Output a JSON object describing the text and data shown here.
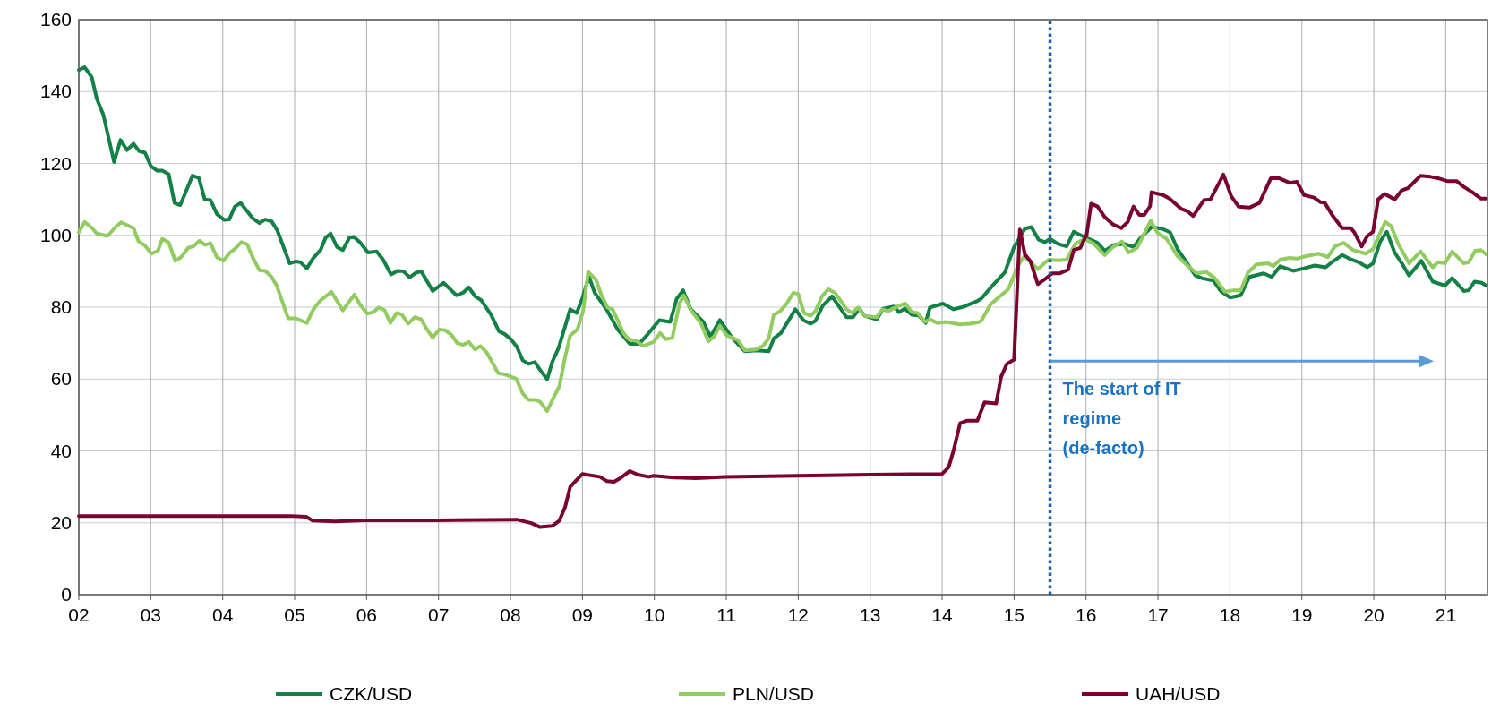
{
  "chart_data": {
    "type": "line",
    "xlim": [
      2002,
      2021.58
    ],
    "ylim": [
      0,
      160
    ],
    "xticks": [
      {
        "value": 2002,
        "label": "02"
      },
      {
        "value": 2003,
        "label": "03"
      },
      {
        "value": 2004,
        "label": "04"
      },
      {
        "value": 2005,
        "label": "05"
      },
      {
        "value": 2006,
        "label": "06"
      },
      {
        "value": 2007,
        "label": "07"
      },
      {
        "value": 2008,
        "label": "08"
      },
      {
        "value": 2009,
        "label": "09"
      },
      {
        "value": 2010,
        "label": "10"
      },
      {
        "value": 2011,
        "label": "11"
      },
      {
        "value": 2012,
        "label": "12"
      },
      {
        "value": 2013,
        "label": "13"
      },
      {
        "value": 2014,
        "label": "14"
      },
      {
        "value": 2015,
        "label": "15"
      },
      {
        "value": 2016,
        "label": "16"
      },
      {
        "value": 2017,
        "label": "17"
      },
      {
        "value": 2018,
        "label": "18"
      },
      {
        "value": 2019,
        "label": "19"
      },
      {
        "value": 2020,
        "label": "20"
      },
      {
        "value": 2021,
        "label": "21"
      }
    ],
    "yticks": [
      0,
      20,
      40,
      60,
      80,
      100,
      120,
      140,
      160
    ],
    "grid": true,
    "legend": "bottom",
    "line_style": "solid",
    "ref_lines": [
      {
        "axis": "x",
        "value": 2015.5,
        "color": "#1f5fa8",
        "line_style": "dotted"
      }
    ],
    "annotations": [
      {
        "text": "The start of IT regime (de-facto)",
        "x": 2015.5,
        "y": 65
      }
    ],
    "series": [
      {
        "name": "CZK/USD",
        "color": "#138045",
        "x": [
          2002,
          2002.08,
          2002.18,
          2002.25,
          2002.34,
          2002.49,
          2002.58,
          2002.67,
          2002.76,
          2002.84,
          2002.92,
          2003,
          2003.09,
          2003.16,
          2003.25,
          2003.33,
          2003.41,
          2003.58,
          2003.67,
          2003.75,
          2003.83,
          2003.92,
          2004.02,
          2004.09,
          2004.17,
          2004.25,
          2004.42,
          2004.51,
          2004.59,
          2004.68,
          2004.76,
          2004.93,
          2005.01,
          2005.08,
          2005.17,
          2005.26,
          2005.36,
          2005.43,
          2005.5,
          2005.59,
          2005.67,
          2005.76,
          2005.82,
          2005.91,
          2006.02,
          2006.14,
          2006.23,
          2006.34,
          2006.43,
          2006.51,
          2006.6,
          2006.69,
          2006.76,
          2006.92,
          2007.07,
          2007.25,
          2007.34,
          2007.42,
          2007.51,
          2007.59,
          2007.73,
          2007.84,
          2007.92,
          2008.01,
          2008.09,
          2008.17,
          2008.25,
          2008.34,
          2008.41,
          2008.51,
          2008.58,
          2008.67,
          2008.83,
          2008.92,
          2009,
          2009.09,
          2009.17,
          2009.34,
          2009.49,
          2009.66,
          2009.79,
          2009.91,
          2010.07,
          2010.22,
          2010.31,
          2010.4,
          2010.5,
          2010.68,
          2010.78,
          2010.91,
          2011.08,
          2011.26,
          2011.43,
          2011.59,
          2011.66,
          2011.76,
          2011.96,
          2012.07,
          2012.17,
          2012.24,
          2012.34,
          2012.47,
          2012.67,
          2012.76,
          2012.85,
          2012.92,
          2013.09,
          2013.18,
          2013.33,
          2013.4,
          2013.48,
          2013.58,
          2013.68,
          2013.77,
          2013.83,
          2014.01,
          2014.16,
          2014.31,
          2014.49,
          2014.55,
          2014.7,
          2014.87,
          2015,
          2015.15,
          2015.24,
          2015.34,
          2015.43,
          2015.5,
          2015.61,
          2015.73,
          2015.83,
          2015.93,
          2016.06,
          2016.16,
          2016.26,
          2016.39,
          2016.54,
          2016.66,
          2016.76,
          2016.91,
          2017.06,
          2017.17,
          2017.27,
          2017.39,
          2017.52,
          2017.62,
          2017.77,
          2017.87,
          2018,
          2018.15,
          2018.27,
          2018.47,
          2018.58,
          2018.7,
          2018.88,
          2019.03,
          2019.18,
          2019.33,
          2019.43,
          2019.56,
          2019.66,
          2019.79,
          2019.91,
          2019.99,
          2020.09,
          2020.18,
          2020.29,
          2020.39,
          2020.49,
          2020.66,
          2020.82,
          2020.99,
          2021.09,
          2021.25,
          2021.32,
          2021.4,
          2021.5,
          2021.56
        ],
        "values": [
          146,
          146.8,
          144,
          138,
          133.6,
          120.4,
          126.5,
          123.7,
          125.5,
          123.4,
          123,
          119.3,
          118,
          118,
          117,
          109,
          108.4,
          116.6,
          115.9,
          110,
          109.8,
          105.9,
          104.3,
          104.4,
          108,
          109,
          104.7,
          103.4,
          104.4,
          103.9,
          101.3,
          92.2,
          92.7,
          92.5,
          90.8,
          93.7,
          95.9,
          99.3,
          100.5,
          96.7,
          95.9,
          99.3,
          99.6,
          98,
          95.2,
          95.5,
          93.2,
          89.1,
          90.1,
          90,
          88.3,
          89.6,
          90,
          84.5,
          86.8,
          83.3,
          84,
          85.5,
          83,
          82,
          77.9,
          73.3,
          72.5,
          71,
          68.9,
          65.2,
          64.2,
          64.7,
          62.6,
          59.9,
          64.7,
          68.7,
          79.4,
          78.4,
          82.5,
          88.6,
          84,
          79.2,
          73.8,
          69.8,
          69.8,
          72.5,
          76.4,
          75.9,
          82.3,
          84.7,
          79.6,
          75.9,
          71.8,
          76.4,
          71.5,
          67.7,
          68,
          67.7,
          71.3,
          72.8,
          79.4,
          76.4,
          75.4,
          76.2,
          80.4,
          83,
          77.2,
          77.2,
          79.6,
          77.6,
          76.6,
          79.6,
          80.2,
          78.6,
          79.6,
          77.9,
          77.6,
          75.6,
          79.9,
          81,
          79.4,
          80.2,
          81.7,
          82.5,
          86,
          89.6,
          96.7,
          101.8,
          102.3,
          98.8,
          98.1,
          99,
          97.6,
          96.9,
          101,
          100,
          98.8,
          97.9,
          95.7,
          97.3,
          97.6,
          96.7,
          99.3,
          102.3,
          101.8,
          100.8,
          96.2,
          92.7,
          88.8,
          88,
          87.4,
          84.5,
          82.7,
          83.3,
          88.4,
          89.4,
          88.4,
          91.4,
          90.1,
          90.8,
          91.6,
          91.1,
          92.7,
          94.5,
          93.5,
          92.5,
          91.1,
          92.2,
          98.3,
          101,
          95.2,
          92.2,
          88.8,
          92.9,
          87.1,
          86,
          88.1,
          84.5,
          84.7,
          87.1,
          86.8,
          86
        ]
      },
      {
        "name": "PLN/USD",
        "color": "#92cc60",
        "x": [
          2002,
          2002.08,
          2002.17,
          2002.25,
          2002.4,
          2002.51,
          2002.59,
          2002.76,
          2002.83,
          2002.91,
          2003.01,
          2003.1,
          2003.16,
          2003.25,
          2003.34,
          2003.42,
          2003.52,
          2003.59,
          2003.68,
          2003.75,
          2003.83,
          2003.92,
          2004.01,
          2004.1,
          2004.17,
          2004.26,
          2004.34,
          2004.42,
          2004.51,
          2004.59,
          2004.68,
          2004.75,
          2004.91,
          2005.01,
          2005.17,
          2005.26,
          2005.35,
          2005.43,
          2005.51,
          2005.59,
          2005.67,
          2005.75,
          2005.83,
          2005.91,
          2006.01,
          2006.09,
          2006.17,
          2006.25,
          2006.33,
          2006.42,
          2006.49,
          2006.58,
          2006.67,
          2006.76,
          2006.84,
          2006.92,
          2007.01,
          2007.09,
          2007.18,
          2007.26,
          2007.34,
          2007.42,
          2007.51,
          2007.58,
          2007.67,
          2007.83,
          2007.92,
          2008.08,
          2008.17,
          2008.25,
          2008.35,
          2008.41,
          2008.51,
          2008.59,
          2008.68,
          2008.76,
          2008.83,
          2008.93,
          2009.01,
          2009.08,
          2009.19,
          2009.26,
          2009.35,
          2009.42,
          2009.57,
          2009.64,
          2009.76,
          2009.84,
          2009.99,
          2010.08,
          2010.16,
          2010.25,
          2010.35,
          2010.41,
          2010.5,
          2010.65,
          2010.75,
          2010.83,
          2010.91,
          2011.01,
          2011.16,
          2011.26,
          2011.41,
          2011.51,
          2011.59,
          2011.66,
          2011.75,
          2011.84,
          2011.93,
          2012,
          2012.08,
          2012.17,
          2012.24,
          2012.33,
          2012.42,
          2012.51,
          2012.6,
          2012.67,
          2012.75,
          2012.83,
          2012.92,
          2013.09,
          2013.17,
          2013.25,
          2013.4,
          2013.49,
          2013.58,
          2013.66,
          2013.76,
          2013.83,
          2013.93,
          2014.06,
          2014.24,
          2014.39,
          2014.52,
          2014.55,
          2014.67,
          2014.8,
          2014.92,
          2015.05,
          2015.14,
          2015.33,
          2015.48,
          2015.61,
          2015.73,
          2015.85,
          2015.98,
          2016.11,
          2016.26,
          2016.36,
          2016.5,
          2016.59,
          2016.71,
          2016.9,
          2016.99,
          2017.12,
          2017.27,
          2017.42,
          2017.54,
          2017.67,
          2017.79,
          2017.93,
          2018.05,
          2018.15,
          2018.25,
          2018.37,
          2018.53,
          2018.6,
          2018.7,
          2018.83,
          2018.93,
          2019.06,
          2019.23,
          2019.36,
          2019.46,
          2019.58,
          2019.71,
          2019.89,
          2019.99,
          2020.08,
          2020.16,
          2020.24,
          2020.34,
          2020.49,
          2020.65,
          2020.82,
          2020.89,
          2020.99,
          2021.09,
          2021.25,
          2021.32,
          2021.41,
          2021.49,
          2021.56
        ],
        "values": [
          100.8,
          103.7,
          102.3,
          100.5,
          99.8,
          102.3,
          103.6,
          102,
          98.3,
          97.3,
          94.9,
          95.7,
          99,
          98,
          92.9,
          93.9,
          96.5,
          96.9,
          98.5,
          97.3,
          97.8,
          93.9,
          92.9,
          95.2,
          96.2,
          98.1,
          97.5,
          93.7,
          90.3,
          90.1,
          88.4,
          86,
          76.9,
          76.9,
          75.6,
          79.4,
          81.7,
          83,
          84.3,
          81.7,
          79.1,
          81.3,
          83.5,
          80.7,
          78.2,
          78.6,
          79.9,
          79.2,
          75.6,
          78.4,
          77.9,
          75.4,
          77.2,
          76.6,
          73.8,
          71.5,
          73.8,
          73.6,
          72.3,
          70,
          69.5,
          70.3,
          68.2,
          69.2,
          67.4,
          61.6,
          61.3,
          60.1,
          56,
          54.2,
          54.2,
          53.7,
          51.1,
          54.5,
          58,
          66.2,
          72.1,
          73.8,
          78.9,
          89.8,
          87.6,
          83.5,
          79.9,
          79.4,
          72.8,
          71.1,
          70.5,
          69.2,
          70.3,
          72.8,
          71.1,
          71.5,
          81,
          83.3,
          79.4,
          75.4,
          70.5,
          71.8,
          74.8,
          72.1,
          70.8,
          68,
          68.2,
          69.2,
          71.3,
          77.9,
          78.9,
          81,
          84,
          83.7,
          78.4,
          77.6,
          78.9,
          83,
          85,
          84,
          81.5,
          79.4,
          78.4,
          79.9,
          77.6,
          77.2,
          79.4,
          78.9,
          80.4,
          81,
          78.6,
          78.4,
          75.9,
          76.6,
          75.6,
          75.9,
          75.2,
          75.4,
          75.9,
          76.4,
          80.7,
          83,
          85,
          91.4,
          94.2,
          90.6,
          93.2,
          93,
          93.2,
          97.6,
          99,
          97.6,
          94.5,
          96.5,
          98.3,
          95.2,
          96.5,
          104.1,
          100.8,
          99,
          94.2,
          91.4,
          89.4,
          89.8,
          88.1,
          84.3,
          84.7,
          84.7,
          89.6,
          91.9,
          92.2,
          91.4,
          93.2,
          93.7,
          93.5,
          94.2,
          94.9,
          93.9,
          96.9,
          97.9,
          95.9,
          94.9,
          96.2,
          100.3,
          103.7,
          102.6,
          97.6,
          92.2,
          95.5,
          91.1,
          92.5,
          92.2,
          95.5,
          92.2,
          92.5,
          95.7,
          95.9,
          94.7
        ]
      },
      {
        "name": "UAH/USD",
        "color": "#7a0430",
        "x": [
          2002,
          2004.95,
          2005.16,
          2005.25,
          2005.56,
          2005.96,
          2006.97,
          2008.09,
          2008.29,
          2008.41,
          2008.58,
          2008.68,
          2008.76,
          2008.83,
          2009,
          2009.24,
          2009.34,
          2009.44,
          2009.54,
          2009.66,
          2009.77,
          2009.92,
          2009.99,
          2010.27,
          2010.58,
          2010.98,
          2011.99,
          2013,
          2014,
          2014.09,
          2014.16,
          2014.25,
          2014.34,
          2014.49,
          2014.59,
          2014.75,
          2014.82,
          2014.9,
          2015,
          2015.08,
          2015.15,
          2015.23,
          2015.33,
          2015.43,
          2015.53,
          2015.63,
          2015.75,
          2015.83,
          2015.92,
          2016.01,
          2016.07,
          2016.16,
          2016.26,
          2016.37,
          2016.49,
          2016.58,
          2016.66,
          2016.74,
          2016.81,
          2016.89,
          2016.91,
          2017.07,
          2017.16,
          2017.32,
          2017.41,
          2017.49,
          2017.64,
          2017.73,
          2017.91,
          2018.02,
          2018.12,
          2018.27,
          2018.41,
          2018.57,
          2018.68,
          2018.83,
          2018.93,
          2019.03,
          2019.17,
          2019.26,
          2019.32,
          2019.43,
          2019.56,
          2019.68,
          2019.73,
          2019.83,
          2019.91,
          2019.99,
          2020.06,
          2020.15,
          2020.29,
          2020.39,
          2020.48,
          2020.65,
          2020.79,
          2020.89,
          2021.02,
          2021.15,
          2021.25,
          2021.37,
          2021.49,
          2021.56
        ],
        "values": [
          21.9,
          21.9,
          21.7,
          20.6,
          20.4,
          20.7,
          20.7,
          20.9,
          19.9,
          18.8,
          19.1,
          20.6,
          24.4,
          30,
          33.6,
          32.8,
          31.6,
          31.4,
          32.6,
          34.4,
          33.4,
          32.8,
          33.1,
          32.6,
          32.4,
          32.8,
          33.1,
          33.4,
          33.6,
          35.4,
          40.2,
          47.7,
          48.4,
          48.4,
          53.5,
          53.2,
          60.6,
          64.2,
          65.4,
          101.6,
          94.7,
          92.7,
          86.4,
          87.8,
          89.4,
          89.4,
          90.4,
          95.9,
          96.5,
          100.3,
          108.8,
          108,
          105.1,
          103.1,
          102,
          103.7,
          108,
          105.7,
          105.7,
          108.1,
          112,
          111.2,
          110.2,
          107.4,
          106.7,
          105.4,
          109.8,
          110,
          116.9,
          110.8,
          108,
          107.7,
          109,
          115.9,
          115.9,
          114.6,
          114.9,
          111.2,
          110.5,
          109.2,
          109,
          105.4,
          102,
          102,
          100.8,
          96.9,
          99.8,
          101,
          110,
          111.5,
          110,
          112.5,
          113.2,
          116.6,
          116.3,
          115.9,
          115.1,
          115.1,
          113.5,
          112,
          110.2,
          110.2
        ]
      }
    ]
  }
}
